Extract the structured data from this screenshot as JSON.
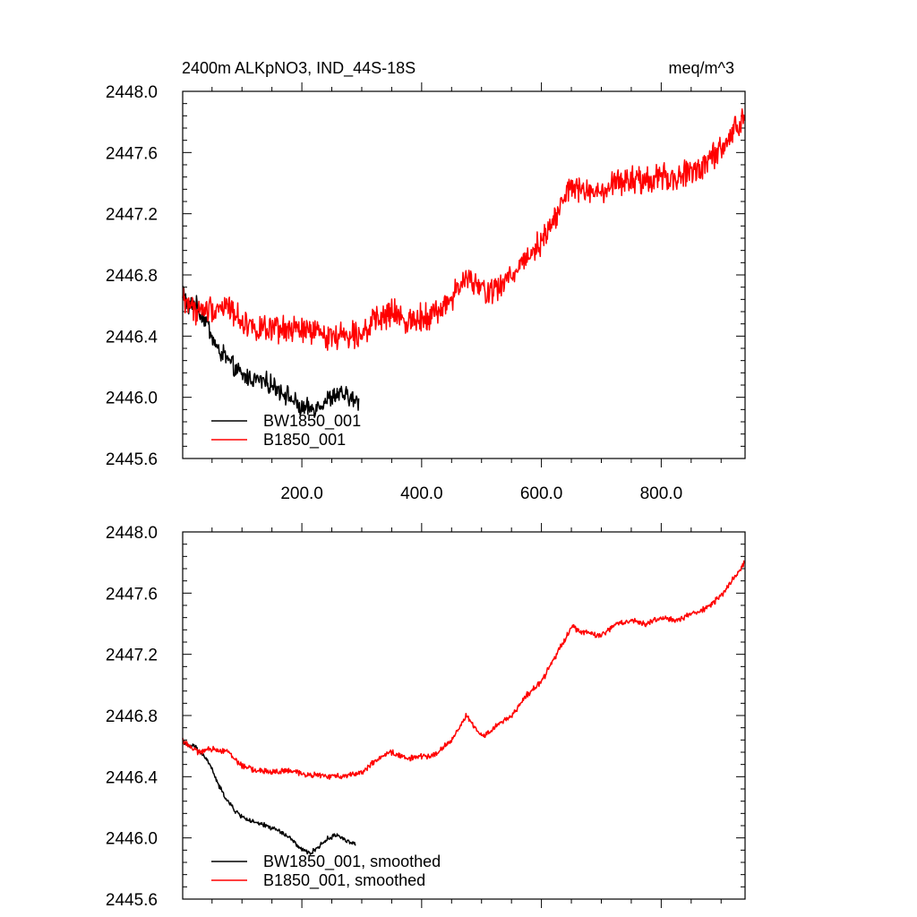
{
  "chart_data": [
    {
      "type": "line",
      "title_left": "2400m ALKpNO3, IND_44S-18S",
      "title_right": "meq/m^3",
      "xlabel": "",
      "ylabel": "",
      "xlim": [
        1,
        940
      ],
      "ylim": [
        2445.6,
        2448.0
      ],
      "xticks": [
        200,
        400,
        600,
        800
      ],
      "xtick_labels": [
        "200.0",
        "400.0",
        "600.0",
        "800.0"
      ],
      "yticks": [
        2445.6,
        2446.0,
        2446.4,
        2446.8,
        2447.2,
        2447.6,
        2448.0
      ],
      "ytick_labels": [
        "2445.6",
        "2446.0",
        "2446.4",
        "2446.8",
        "2447.2",
        "2447.6",
        "2448.0"
      ],
      "legend_position": "bottom-left",
      "series": [
        {
          "name": "BW1850_001",
          "color": "#000000",
          "x": [
            1,
            10,
            20,
            30,
            40,
            50,
            60,
            70,
            80,
            90,
            100,
            120,
            140,
            160,
            180,
            200,
            220,
            240,
            260,
            280,
            295
          ],
          "y": [
            2446.72,
            2446.58,
            2446.62,
            2446.55,
            2446.5,
            2446.4,
            2446.3,
            2446.28,
            2446.22,
            2446.18,
            2446.14,
            2446.12,
            2446.1,
            2446.06,
            2446.0,
            2445.92,
            2445.93,
            2445.98,
            2446.02,
            2446.0,
            2445.96
          ],
          "noise": 0.05
        },
        {
          "name": "B1850_001",
          "color": "#ff0000",
          "x": [
            1,
            25,
            50,
            75,
            100,
            125,
            150,
            175,
            200,
            225,
            250,
            275,
            300,
            325,
            350,
            375,
            400,
            425,
            450,
            475,
            500,
            525,
            550,
            575,
            600,
            625,
            650,
            675,
            700,
            725,
            750,
            775,
            800,
            825,
            850,
            875,
            900,
            925,
            940
          ],
          "y": [
            2446.65,
            2446.56,
            2446.58,
            2446.6,
            2446.5,
            2446.45,
            2446.43,
            2446.44,
            2446.44,
            2446.42,
            2446.4,
            2446.41,
            2446.43,
            2446.5,
            2446.55,
            2446.5,
            2446.53,
            2446.55,
            2446.65,
            2446.78,
            2446.7,
            2446.7,
            2446.8,
            2446.92,
            2447.02,
            2447.2,
            2447.38,
            2447.34,
            2447.32,
            2447.4,
            2447.42,
            2447.4,
            2447.45,
            2447.42,
            2447.48,
            2447.52,
            2447.62,
            2447.76,
            2447.82
          ],
          "noise": 0.07
        }
      ]
    },
    {
      "type": "line",
      "title_left": "",
      "title_right": "",
      "xlabel": "",
      "ylabel": "",
      "xlim": [
        1,
        940
      ],
      "ylim": [
        2445.6,
        2448.0
      ],
      "xticks": [
        200,
        400,
        600,
        800
      ],
      "xtick_labels": [],
      "yticks": [
        2445.6,
        2446.0,
        2446.4,
        2446.8,
        2447.2,
        2447.6,
        2448.0
      ],
      "ytick_labels": [
        "2445.6",
        "2446.0",
        "2446.4",
        "2446.8",
        "2447.2",
        "2447.6",
        "2448.0"
      ],
      "legend_position": "bottom-left",
      "series": [
        {
          "name": "BW1850_001, smoothed",
          "color": "#000000",
          "x": [
            1,
            10,
            20,
            30,
            40,
            50,
            60,
            70,
            80,
            90,
            100,
            110,
            120,
            140,
            160,
            180,
            200,
            215,
            230,
            245,
            260,
            275,
            290
          ],
          "y": [
            2446.64,
            2446.6,
            2446.6,
            2446.56,
            2446.52,
            2446.45,
            2446.35,
            2446.28,
            2446.22,
            2446.17,
            2446.14,
            2446.12,
            2446.1,
            2446.08,
            2446.05,
            2446.0,
            2445.92,
            2445.9,
            2445.95,
            2446.0,
            2446.02,
            2445.98,
            2445.96
          ],
          "noise": 0.012
        },
        {
          "name": "B1850_001, smoothed",
          "color": "#ff0000",
          "x": [
            1,
            25,
            50,
            75,
            100,
            125,
            150,
            175,
            200,
            225,
            250,
            275,
            300,
            325,
            350,
            375,
            400,
            425,
            450,
            475,
            500,
            525,
            550,
            575,
            600,
            625,
            650,
            675,
            700,
            725,
            750,
            775,
            800,
            825,
            850,
            875,
            900,
            925,
            940
          ],
          "y": [
            2446.64,
            2446.56,
            2446.58,
            2446.57,
            2446.47,
            2446.44,
            2446.43,
            2446.44,
            2446.42,
            2446.41,
            2446.4,
            2446.41,
            2446.43,
            2446.51,
            2446.56,
            2446.52,
            2446.53,
            2446.55,
            2446.64,
            2446.8,
            2446.66,
            2446.73,
            2446.8,
            2446.93,
            2447.02,
            2447.2,
            2447.38,
            2447.34,
            2447.32,
            2447.4,
            2447.42,
            2447.4,
            2447.44,
            2447.42,
            2447.46,
            2447.5,
            2447.58,
            2447.72,
            2447.8
          ],
          "noise": 0.015
        }
      ]
    }
  ]
}
